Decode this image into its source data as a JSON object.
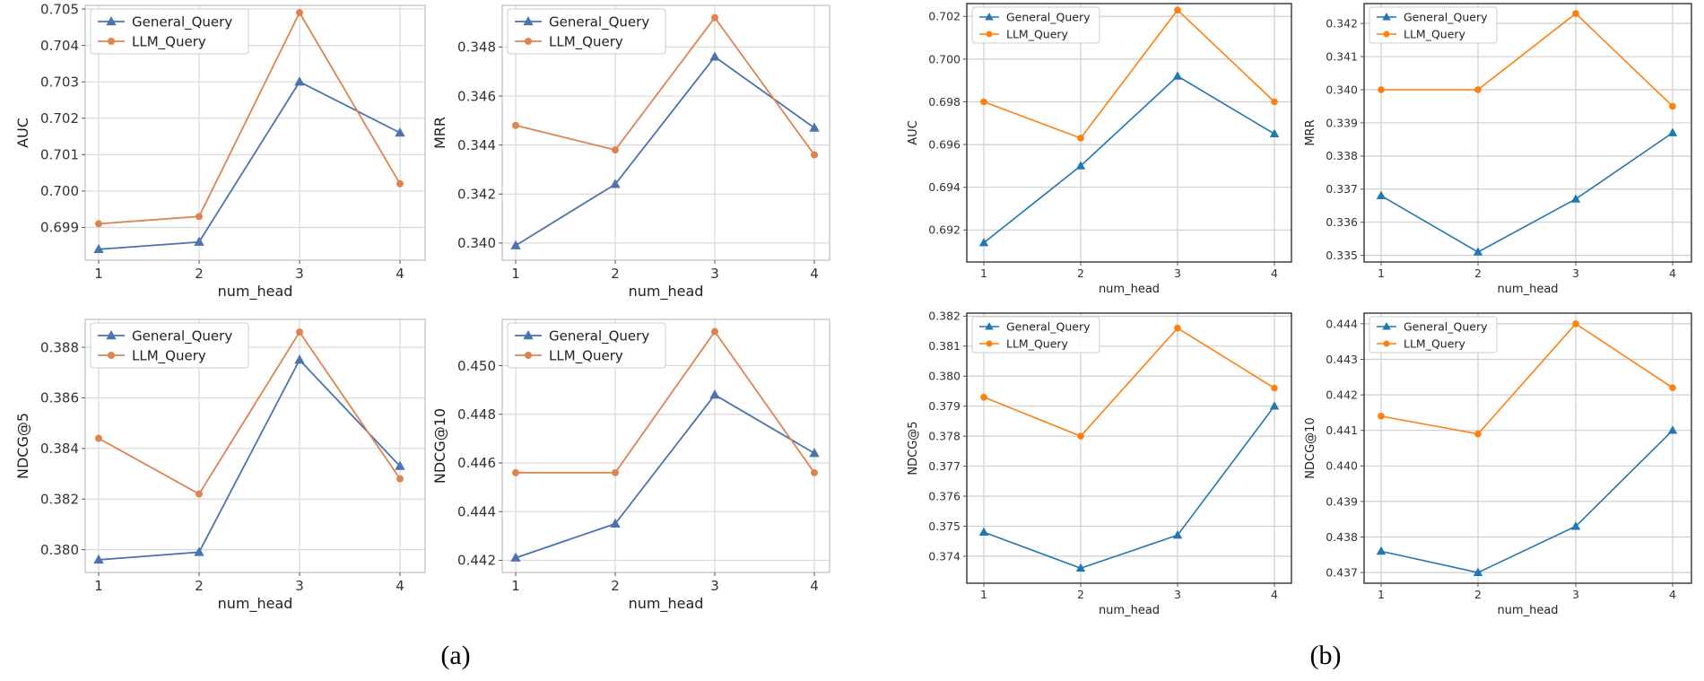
{
  "figure": {
    "captions": [
      "(a)",
      "(b)"
    ]
  },
  "chart_data": [
    {
      "type": "line",
      "panel": "a-top-left",
      "x": [
        1,
        2,
        3,
        4
      ],
      "xlabel": "num_head",
      "ylabel": "AUC",
      "ylim": [
        0.6981,
        0.7051
      ],
      "yticks": [
        0.699,
        0.7,
        0.701,
        0.702,
        0.703,
        0.704,
        0.705
      ],
      "series": [
        {
          "name": "General_Query",
          "values": [
            0.6984,
            0.6986,
            0.703,
            0.7016
          ]
        },
        {
          "name": "LLM_Query",
          "values": [
            0.6991,
            0.6993,
            0.7049,
            0.7002
          ]
        }
      ]
    },
    {
      "type": "line",
      "panel": "a-top-right",
      "x": [
        1,
        2,
        3,
        4
      ],
      "xlabel": "num_head",
      "ylabel": "MRR",
      "ylim": [
        0.3393,
        0.3497
      ],
      "yticks": [
        0.34,
        0.342,
        0.344,
        0.346,
        0.348
      ],
      "series": [
        {
          "name": "General_Query",
          "values": [
            0.3399,
            0.3424,
            0.3476,
            0.3447
          ]
        },
        {
          "name": "LLM_Query",
          "values": [
            0.3448,
            0.3438,
            0.3492,
            0.3436
          ]
        }
      ]
    },
    {
      "type": "line",
      "panel": "a-bottom-left",
      "x": [
        1,
        2,
        3,
        4
      ],
      "xlabel": "num_head",
      "ylabel": "NDCG@5",
      "ylim": [
        0.3791,
        0.3891
      ],
      "yticks": [
        0.38,
        0.382,
        0.384,
        0.386,
        0.388
      ],
      "series": [
        {
          "name": "General_Query",
          "values": [
            0.3796,
            0.3799,
            0.3875,
            0.3833
          ]
        },
        {
          "name": "LLM_Query",
          "values": [
            0.3844,
            0.3822,
            0.3886,
            0.3828
          ]
        }
      ]
    },
    {
      "type": "line",
      "panel": "a-bottom-right",
      "x": [
        1,
        2,
        3,
        4
      ],
      "xlabel": "num_head",
      "ylabel": "NDCG@10",
      "ylim": [
        0.4415,
        0.4519
      ],
      "yticks": [
        0.442,
        0.444,
        0.446,
        0.448,
        0.45
      ],
      "series": [
        {
          "name": "General_Query",
          "values": [
            0.4421,
            0.4435,
            0.4488,
            0.4464
          ]
        },
        {
          "name": "LLM_Query",
          "values": [
            0.4456,
            0.4456,
            0.4514,
            0.4456
          ]
        }
      ]
    },
    {
      "type": "line",
      "panel": "b-top-left",
      "x": [
        1,
        2,
        3,
        4
      ],
      "xlabel": "num_head",
      "ylabel": "AUC",
      "ylim": [
        0.6905,
        0.7026
      ],
      "yticks": [
        0.692,
        0.694,
        0.696,
        0.698,
        0.7,
        0.702
      ],
      "series": [
        {
          "name": "General_Query",
          "values": [
            0.6914,
            0.695,
            0.6992,
            0.6965
          ]
        },
        {
          "name": "LLM_Query",
          "values": [
            0.698,
            0.6963,
            0.7023,
            0.698
          ]
        }
      ]
    },
    {
      "type": "line",
      "panel": "b-top-right",
      "x": [
        1,
        2,
        3,
        4
      ],
      "xlabel": "num_head",
      "ylabel": "MRR",
      "ylim": [
        0.3348,
        0.3426
      ],
      "yticks": [
        0.335,
        0.336,
        0.337,
        0.338,
        0.339,
        0.34,
        0.341,
        0.342
      ],
      "series": [
        {
          "name": "General_Query",
          "values": [
            0.3368,
            0.3351,
            0.3367,
            0.3387
          ]
        },
        {
          "name": "LLM_Query",
          "values": [
            0.34,
            0.34,
            0.3423,
            0.3395
          ]
        }
      ]
    },
    {
      "type": "line",
      "panel": "b-bottom-left",
      "x": [
        1,
        2,
        3,
        4
      ],
      "xlabel": "num_head",
      "ylabel": "NDCG@5",
      "ylim": [
        0.3731,
        0.3821
      ],
      "yticks": [
        0.374,
        0.375,
        0.376,
        0.377,
        0.378,
        0.379,
        0.38,
        0.381,
        0.382
      ],
      "series": [
        {
          "name": "General_Query",
          "values": [
            0.3748,
            0.3736,
            0.3747,
            0.379
          ]
        },
        {
          "name": "LLM_Query",
          "values": [
            0.3793,
            0.378,
            0.3816,
            0.3796
          ]
        }
      ]
    },
    {
      "type": "line",
      "panel": "b-bottom-right",
      "x": [
        1,
        2,
        3,
        4
      ],
      "xlabel": "num_head",
      "ylabel": "NDCG@10",
      "ylim": [
        0.4367,
        0.4443
      ],
      "yticks": [
        0.437,
        0.438,
        0.439,
        0.44,
        0.441,
        0.442,
        0.443,
        0.444
      ],
      "series": [
        {
          "name": "General_Query",
          "values": [
            0.4376,
            0.437,
            0.4383,
            0.441
          ]
        },
        {
          "name": "LLM_Query",
          "values": [
            0.4414,
            0.4409,
            0.444,
            0.4422
          ]
        }
      ]
    }
  ],
  "styles": {
    "a": {
      "general_color": "#4c72b0",
      "llm_color": "#dd8452",
      "grid_color": "#d9d9d9",
      "frame_color": "#cccccc",
      "grid": true
    },
    "b": {
      "general_color": "#1f77b4",
      "llm_color": "#ff7f0e",
      "grid_color": "#cfcfcf",
      "frame_color": "#222222",
      "grid": true
    }
  }
}
